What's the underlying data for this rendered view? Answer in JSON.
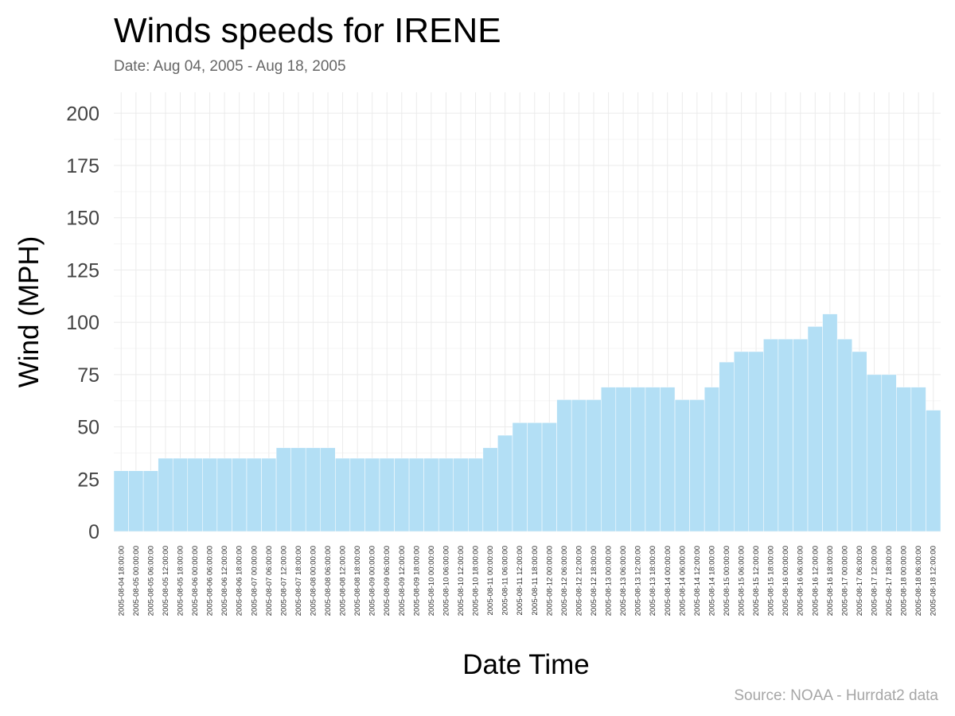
{
  "chart_data": {
    "type": "bar",
    "title": "Winds speeds for IRENE",
    "subtitle": "Date:  Aug 04, 2005 - Aug 18, 2005",
    "xlabel": "Date Time",
    "ylabel": "Wind (MPH)",
    "caption": "Source: NOAA - Hurrdat2 data",
    "ylim": [
      0,
      210
    ],
    "yticks": [
      0,
      25,
      50,
      75,
      100,
      125,
      150,
      175,
      200
    ],
    "grid": true,
    "bar_color": "#b3dff5",
    "categories": [
      "2005-08-04 18:00:00",
      "2005-08-05 00:00:00",
      "2005-08-05 06:00:00",
      "2005-08-05 12:00:00",
      "2005-08-05 18:00:00",
      "2005-08-06 00:00:00",
      "2005-08-06 06:00:00",
      "2005-08-06 12:00:00",
      "2005-08-06 18:00:00",
      "2005-08-07 00:00:00",
      "2005-08-07 06:00:00",
      "2005-08-07 12:00:00",
      "2005-08-07 18:00:00",
      "2005-08-08 00:00:00",
      "2005-08-08 06:00:00",
      "2005-08-08 12:00:00",
      "2005-08-08 18:00:00",
      "2005-08-09 00:00:00",
      "2005-08-09 06:00:00",
      "2005-08-09 12:00:00",
      "2005-08-09 18:00:00",
      "2005-08-10 00:00:00",
      "2005-08-10 06:00:00",
      "2005-08-10 12:00:00",
      "2005-08-10 18:00:00",
      "2005-08-11 00:00:00",
      "2005-08-11 06:00:00",
      "2005-08-11 12:00:00",
      "2005-08-11 18:00:00",
      "2005-08-12 00:00:00",
      "2005-08-12 06:00:00",
      "2005-08-12 12:00:00",
      "2005-08-12 18:00:00",
      "2005-08-13 00:00:00",
      "2005-08-13 06:00:00",
      "2005-08-13 12:00:00",
      "2005-08-13 18:00:00",
      "2005-08-14 00:00:00",
      "2005-08-14 06:00:00",
      "2005-08-14 12:00:00",
      "2005-08-14 18:00:00",
      "2005-08-15 00:00:00",
      "2005-08-15 06:00:00",
      "2005-08-15 12:00:00",
      "2005-08-15 18:00:00",
      "2005-08-16 00:00:00",
      "2005-08-16 06:00:00",
      "2005-08-16 12:00:00",
      "2005-08-16 18:00:00",
      "2005-08-17 00:00:00",
      "2005-08-17 06:00:00",
      "2005-08-17 12:00:00",
      "2005-08-17 18:00:00",
      "2005-08-18 00:00:00",
      "2005-08-18 06:00:00",
      "2005-08-18 12:00:00"
    ],
    "values": [
      29,
      29,
      29,
      35,
      35,
      35,
      35,
      35,
      35,
      35,
      35,
      40,
      40,
      40,
      40,
      35,
      35,
      35,
      35,
      35,
      35,
      35,
      35,
      35,
      35,
      40,
      46,
      52,
      52,
      52,
      63,
      63,
      63,
      69,
      69,
      69,
      69,
      69,
      63,
      63,
      69,
      81,
      86,
      86,
      92,
      92,
      92,
      98,
      104,
      92,
      86,
      75,
      75,
      69,
      69,
      58
    ]
  }
}
